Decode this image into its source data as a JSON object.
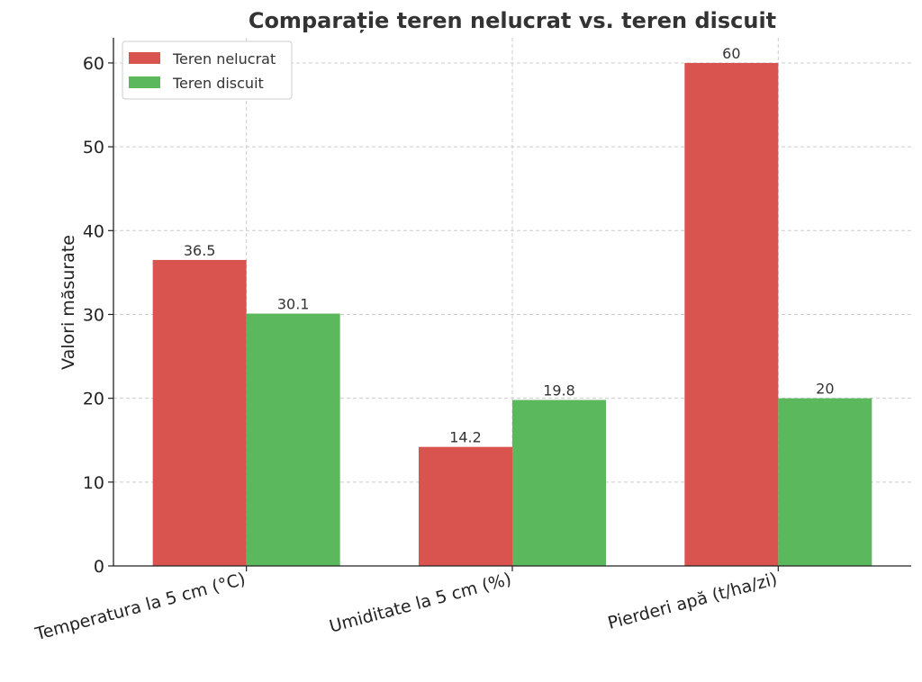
{
  "chart_data": {
    "type": "bar",
    "title": "Comparație teren nelucrat vs. teren discuit",
    "xlabel": "",
    "ylabel": "Valori măsurate",
    "categories": [
      "Temperatura la 5 cm (°C)",
      "Umiditate la 5 cm (%)",
      "Pierderi apă (t/ha/zi)"
    ],
    "series": [
      {
        "name": "Teren nelucrat",
        "color": "#d9534f",
        "values": [
          36.5,
          14.2,
          60
        ],
        "labels": [
          "36.5",
          "14.2",
          "60"
        ]
      },
      {
        "name": "Teren discuit",
        "color": "#5cb85c",
        "values": [
          30.1,
          19.8,
          20
        ],
        "labels": [
          "30.1",
          "19.8",
          "20"
        ]
      }
    ],
    "ylim": [
      0,
      63
    ],
    "yticks": [
      0,
      10,
      20,
      30,
      40,
      50,
      60
    ],
    "grid": true,
    "legend_position": "top-left"
  }
}
